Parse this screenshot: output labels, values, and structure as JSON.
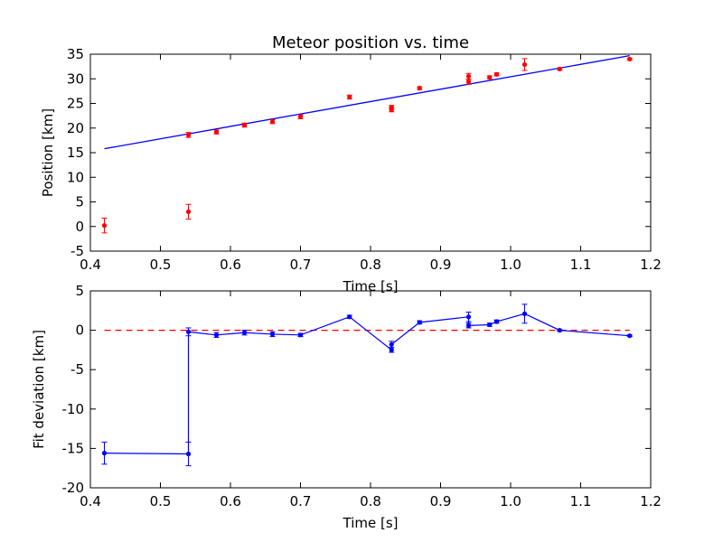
{
  "chart_data": [
    {
      "type": "scatter",
      "title": "Meteor position vs. time",
      "xlabel": "Time [s]",
      "ylabel": "Position [km]",
      "xlim": [
        0.4,
        1.2
      ],
      "ylim": [
        -5,
        35
      ],
      "xticks": [
        "0.4",
        "0.5",
        "0.6",
        "0.7",
        "0.8",
        "0.9",
        "1.0",
        "1.1",
        "1.2"
      ],
      "yticks": [
        "-5",
        "0",
        "5",
        "10",
        "15",
        "20",
        "25",
        "30",
        "35"
      ],
      "grid": false,
      "points": [
        {
          "x": 0.42,
          "y": 0.2,
          "err": 1.5
        },
        {
          "x": 0.54,
          "y": 3.0,
          "err": 1.5
        },
        {
          "x": 0.54,
          "y": 18.6,
          "err": 0.5
        },
        {
          "x": 0.58,
          "y": 19.2,
          "err": 0.4
        },
        {
          "x": 0.62,
          "y": 20.6,
          "err": 0.4
        },
        {
          "x": 0.66,
          "y": 21.3,
          "err": 0.4
        },
        {
          "x": 0.7,
          "y": 22.3,
          "err": 0.4
        },
        {
          "x": 0.77,
          "y": 26.3,
          "err": 0.4
        },
        {
          "x": 0.83,
          "y": 23.7,
          "err": 0.4
        },
        {
          "x": 0.83,
          "y": 24.2,
          "err": 0.4
        },
        {
          "x": 0.87,
          "y": 28.1,
          "err": 0.3
        },
        {
          "x": 0.94,
          "y": 29.4,
          "err": 0.5
        },
        {
          "x": 0.94,
          "y": 30.5,
          "err": 0.6
        },
        {
          "x": 0.97,
          "y": 30.3,
          "err": 0.3
        },
        {
          "x": 0.98,
          "y": 30.9,
          "err": 0.3
        },
        {
          "x": 1.02,
          "y": 32.9,
          "err": 1.2
        },
        {
          "x": 1.07,
          "y": 32.0,
          "err": 0.2
        },
        {
          "x": 1.17,
          "y": 34.0,
          "err": 0.2
        }
      ],
      "fit_line": {
        "x": [
          0.42,
          1.17
        ],
        "y": [
          15.8,
          34.7
        ]
      },
      "colors": {
        "points": "#ff0000",
        "fit": "#0000ff"
      }
    },
    {
      "type": "line",
      "xlabel": "Time [s]",
      "ylabel": "Fit deviation [km]",
      "xlim": [
        0.4,
        1.2
      ],
      "ylim": [
        -20,
        5
      ],
      "xticks": [
        "0.4",
        "0.5",
        "0.6",
        "0.7",
        "0.8",
        "0.9",
        "1.0",
        "1.1",
        "1.2"
      ],
      "yticks": [
        "-20",
        "-15",
        "-10",
        "-5",
        "0",
        "5"
      ],
      "grid": false,
      "points": [
        {
          "x": 0.42,
          "y": -15.6,
          "err": 1.4
        },
        {
          "x": 0.54,
          "y": -15.7,
          "err": 1.5
        },
        {
          "x": 0.54,
          "y": -0.2,
          "err": 0.5
        },
        {
          "x": 0.58,
          "y": -0.6,
          "err": 0.3
        },
        {
          "x": 0.62,
          "y": -0.3,
          "err": 0.3
        },
        {
          "x": 0.66,
          "y": -0.5,
          "err": 0.3
        },
        {
          "x": 0.7,
          "y": -0.6,
          "err": 0.2
        },
        {
          "x": 0.77,
          "y": 1.7,
          "err": 0.2
        },
        {
          "x": 0.83,
          "y": -2.5,
          "err": 0.3
        },
        {
          "x": 0.83,
          "y": -1.8,
          "err": 0.4
        },
        {
          "x": 0.87,
          "y": 1.0,
          "err": 0.2
        },
        {
          "x": 0.94,
          "y": 1.7,
          "err": 0.6
        },
        {
          "x": 0.94,
          "y": 0.6,
          "err": 0.3
        },
        {
          "x": 0.97,
          "y": 0.7,
          "err": 0.2
        },
        {
          "x": 0.98,
          "y": 1.1,
          "err": 0.2
        },
        {
          "x": 1.02,
          "y": 2.1,
          "err": 1.2
        },
        {
          "x": 1.07,
          "y": 0.0,
          "err": 0.1
        },
        {
          "x": 1.17,
          "y": -0.7,
          "err": 0.1
        }
      ],
      "zero_line": {
        "y": 0
      },
      "colors": {
        "line": "#0000ff",
        "zero": "#ff0000"
      }
    }
  ]
}
